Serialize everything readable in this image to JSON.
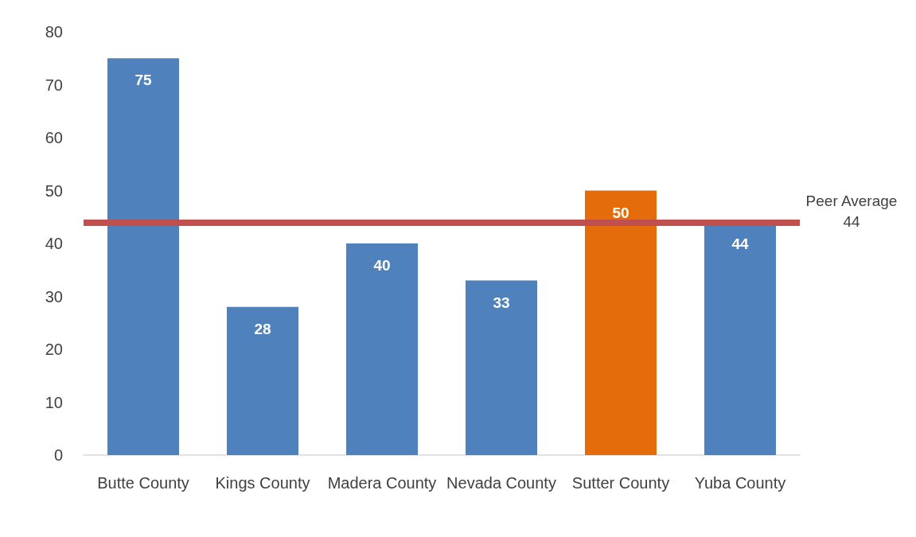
{
  "chart_data": {
    "type": "bar",
    "categories": [
      "Butte County",
      "Kings County",
      "Madera County",
      "Nevada County",
      "Sutter County",
      "Yuba County"
    ],
    "values": [
      75,
      28,
      40,
      33,
      50,
      44
    ],
    "colors": [
      "#4f81bd",
      "#4f81bd",
      "#4f81bd",
      "#4f81bd",
      "#e46c0a",
      "#4f81bd"
    ],
    "ylim": [
      0,
      80
    ],
    "yticks": [
      0,
      10,
      20,
      30,
      40,
      50,
      60,
      70,
      80
    ],
    "grid": false,
    "data_labels": true,
    "ref_lines": [
      {
        "axis": "y",
        "value": 44,
        "label": "Peer Average\n44",
        "color": "#c0504d"
      }
    ]
  }
}
